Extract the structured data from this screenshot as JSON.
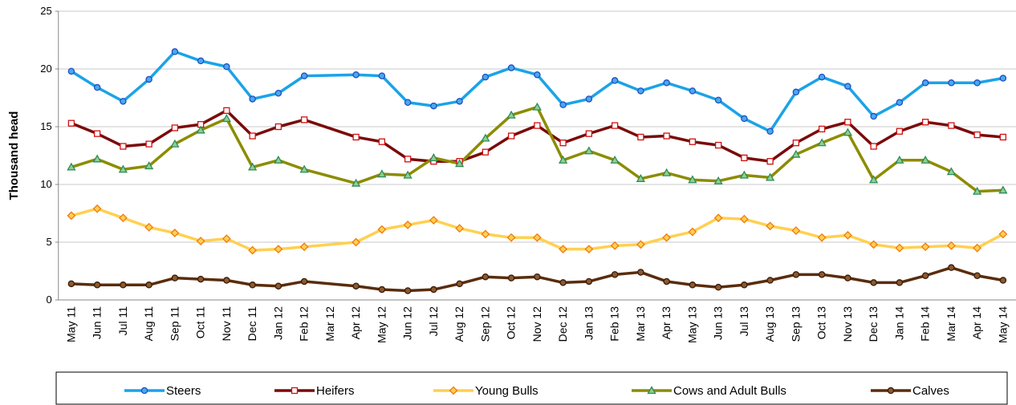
{
  "chart_data": {
    "type": "line",
    "y_label": "Thousand head",
    "categories": [
      "May 11",
      "Jun 11",
      "Jul 11",
      "Aug 11",
      "Sep 11",
      "Oct 11",
      "Nov 11",
      "Dec 11",
      "Jan 12",
      "Feb 12",
      "Mar 12",
      "Apr 12",
      "May 12",
      "Jun 12",
      "Jul 12",
      "Aug 12",
      "Sep 12",
      "Oct 12",
      "Nov 12",
      "Dec 12",
      "Jan 13",
      "Feb 13",
      "Mar 13",
      "Apr 13",
      "May 13",
      "Jun 13",
      "Jul 13",
      "Aug 13",
      "Sep 13",
      "Oct 13",
      "Nov 13",
      "Dec 13",
      "Jan 14",
      "Feb 14",
      "Mar 14",
      "Apr 14",
      "May 14"
    ],
    "series": [
      {
        "name": "Steers",
        "color": "#1aa3e8",
        "marker": "circle",
        "marker_color": "#1f4fc0",
        "marker_fill": "#4aa8f0",
        "values": [
          19.8,
          18.4,
          17.2,
          19.1,
          21.5,
          20.7,
          20.2,
          17.4,
          17.9,
          19.4,
          null,
          19.5,
          19.4,
          17.1,
          16.8,
          17.2,
          19.3,
          20.1,
          19.5,
          16.9,
          17.4,
          19.0,
          18.1,
          18.8,
          18.1,
          17.3,
          15.7,
          14.6,
          18.0,
          19.3,
          18.5,
          15.9,
          17.1,
          18.8,
          18.8,
          18.8,
          19.2
        ]
      },
      {
        "name": "Heifers",
        "color": "#7a0a0a",
        "marker": "square",
        "marker_color": "#d01010",
        "marker_fill": "#ffffff",
        "values": [
          15.3,
          14.4,
          13.3,
          13.5,
          14.9,
          15.2,
          16.4,
          14.2,
          15.0,
          15.6,
          null,
          14.1,
          13.7,
          12.2,
          12.0,
          12.0,
          12.8,
          14.2,
          15.1,
          13.6,
          14.4,
          15.1,
          14.1,
          14.2,
          13.7,
          13.4,
          12.3,
          12.0,
          13.6,
          14.8,
          15.4,
          13.3,
          14.6,
          15.4,
          15.1,
          14.3,
          14.1
        ]
      },
      {
        "name": "Young Bulls",
        "color": "#ffd050",
        "marker": "diamond",
        "marker_color": "#f07a10",
        "marker_fill": "#ffd050",
        "values": [
          7.3,
          7.9,
          7.1,
          6.3,
          5.8,
          5.1,
          5.3,
          4.3,
          4.4,
          4.6,
          null,
          5.0,
          6.1,
          6.5,
          6.9,
          6.2,
          5.7,
          5.4,
          5.4,
          4.4,
          4.4,
          4.7,
          4.8,
          5.4,
          5.9,
          7.1,
          7.0,
          6.4,
          6.0,
          5.4,
          5.6,
          4.8,
          4.5,
          4.6,
          4.7,
          4.5,
          5.7
        ]
      },
      {
        "name": "Cows and Adult Bulls",
        "color": "#8c8c00",
        "marker": "triangle",
        "marker_color": "#2e8b57",
        "marker_fill": "#90d090",
        "values": [
          11.5,
          12.2,
          11.3,
          11.6,
          13.5,
          14.7,
          15.7,
          11.5,
          12.1,
          11.3,
          null,
          10.1,
          10.9,
          10.8,
          12.3,
          11.8,
          14.0,
          16.0,
          16.7,
          12.1,
          12.9,
          12.1,
          10.5,
          11.0,
          10.4,
          10.3,
          10.8,
          10.6,
          12.6,
          13.6,
          14.5,
          10.4,
          12.1,
          12.1,
          11.1,
          9.4,
          9.5
        ]
      },
      {
        "name": "Calves",
        "color": "#5a2c0c",
        "marker": "circle",
        "marker_color": "#3a1a05",
        "marker_fill": "#8a5a30",
        "values": [
          1.4,
          1.3,
          1.3,
          1.3,
          1.9,
          1.8,
          1.7,
          1.3,
          1.2,
          1.6,
          null,
          1.2,
          0.9,
          0.8,
          0.9,
          1.4,
          2.0,
          1.9,
          2.0,
          1.5,
          1.6,
          2.2,
          2.4,
          1.6,
          1.3,
          1.1,
          1.3,
          1.7,
          2.2,
          2.2,
          1.9,
          1.5,
          1.5,
          2.1,
          2.8,
          2.1,
          1.7
        ]
      }
    ],
    "ylim": [
      0,
      25
    ],
    "yticks": [
      0,
      5,
      10,
      15,
      20,
      25
    ],
    "grid": true,
    "legend": "bottom"
  }
}
